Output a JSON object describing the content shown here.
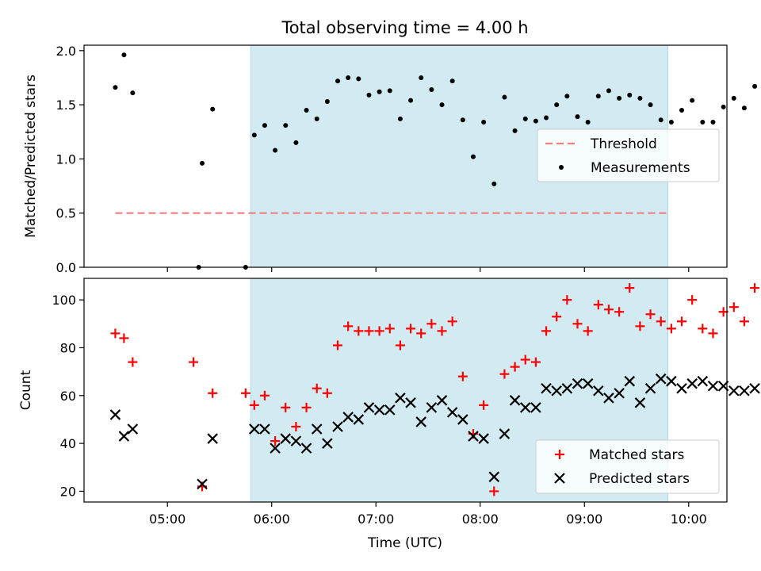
{
  "chart_data": {
    "type": "scatter",
    "title": "Total observing time = 4.00 h",
    "xlabel": "Time (UTC)",
    "x_unit": "hours UTC",
    "xlim": [
      "04:12",
      "10:22"
    ],
    "x_ticks": [
      {
        "value": "05:00",
        "label": "05:00"
      },
      {
        "value": "06:00",
        "label": "06:00"
      },
      {
        "value": "07:00",
        "label": "07:00"
      },
      {
        "value": "08:00",
        "label": "08:00"
      },
      {
        "value": "09:00",
        "label": "09:00"
      },
      {
        "value": "10:00",
        "label": "10:00"
      }
    ],
    "shaded_interval": {
      "from": "05:48",
      "to": "09:48",
      "color": "#add8e6"
    },
    "panels": [
      {
        "name": "ratio",
        "ylabel": "Matched/Predicted stars",
        "ylim": [
          0,
          2.05
        ],
        "y_ticks": [
          "0.0",
          "0.5",
          "1.0",
          "1.5",
          "2.0"
        ],
        "legend_position": "center-right",
        "threshold": {
          "name": "Threshold",
          "y": 0.5,
          "from": "04:30",
          "to": "09:48",
          "color": "#f08080"
        },
        "series": [
          {
            "name": "Measurements",
            "color": "#000000",
            "marker": "dot",
            "points": [
              [
                "04:30",
                1.66
              ],
              [
                "04:35",
                1.96
              ],
              [
                "04:40",
                1.61
              ],
              [
                "05:18",
                0.0
              ],
              [
                "05:20",
                0.96
              ],
              [
                "05:26",
                1.46
              ],
              [
                "05:45",
                0.0
              ],
              [
                "05:50",
                1.22
              ],
              [
                "05:56",
                1.31
              ],
              [
                "06:02",
                1.08
              ],
              [
                "06:08",
                1.31
              ],
              [
                "06:14",
                1.15
              ],
              [
                "06:20",
                1.45
              ],
              [
                "06:26",
                1.37
              ],
              [
                "06:32",
                1.53
              ],
              [
                "06:38",
                1.72
              ],
              [
                "06:44",
                1.75
              ],
              [
                "06:50",
                1.74
              ],
              [
                "06:56",
                1.59
              ],
              [
                "07:02",
                1.62
              ],
              [
                "07:08",
                1.63
              ],
              [
                "07:14",
                1.37
              ],
              [
                "07:20",
                1.54
              ],
              [
                "07:26",
                1.75
              ],
              [
                "07:32",
                1.64
              ],
              [
                "07:38",
                1.5
              ],
              [
                "07:44",
                1.72
              ],
              [
                "07:50",
                1.36
              ],
              [
                "07:56",
                1.02
              ],
              [
                "08:02",
                1.34
              ],
              [
                "08:08",
                0.77
              ],
              [
                "08:14",
                1.57
              ],
              [
                "08:20",
                1.26
              ],
              [
                "08:26",
                1.37
              ],
              [
                "08:32",
                1.35
              ],
              [
                "08:38",
                1.38
              ],
              [
                "08:44",
                1.5
              ],
              [
                "08:50",
                1.58
              ],
              [
                "08:56",
                1.39
              ],
              [
                "09:02",
                1.34
              ],
              [
                "09:08",
                1.58
              ],
              [
                "09:14",
                1.63
              ],
              [
                "09:20",
                1.56
              ],
              [
                "09:26",
                1.59
              ],
              [
                "09:32",
                1.56
              ],
              [
                "09:38",
                1.5
              ],
              [
                "09:44",
                1.36
              ],
              [
                "09:50",
                1.34
              ],
              [
                "09:56",
                1.45
              ],
              [
                "10:02",
                1.54
              ],
              [
                "10:08",
                1.34
              ],
              [
                "10:14",
                1.34
              ],
              [
                "10:20",
                1.48
              ],
              [
                "10:26",
                1.56
              ],
              [
                "10:32",
                1.47
              ],
              [
                "10:38",
                1.67
              ]
            ]
          }
        ]
      },
      {
        "name": "counts",
        "ylabel": "Count",
        "ylim": [
          15.5,
          109
        ],
        "y_ticks": [
          "20",
          "40",
          "60",
          "80",
          "100"
        ],
        "legend_position": "lower-right",
        "series": [
          {
            "name": "Matched stars",
            "color": "#ff0000",
            "marker": "plus",
            "points": [
              [
                "04:30",
                86
              ],
              [
                "04:35",
                84
              ],
              [
                "04:40",
                74
              ],
              [
                "05:15",
                74
              ],
              [
                "05:20",
                22
              ],
              [
                "05:26",
                61
              ],
              [
                "05:45",
                61
              ],
              [
                "05:50",
                56
              ],
              [
                "05:56",
                60
              ],
              [
                "06:02",
                41
              ],
              [
                "06:08",
                55
              ],
              [
                "06:14",
                47
              ],
              [
                "06:20",
                55
              ],
              [
                "06:26",
                63
              ],
              [
                "06:32",
                61
              ],
              [
                "06:38",
                81
              ],
              [
                "06:44",
                89
              ],
              [
                "06:50",
                87
              ],
              [
                "06:56",
                87
              ],
              [
                "07:02",
                87
              ],
              [
                "07:08",
                88
              ],
              [
                "07:14",
                81
              ],
              [
                "07:20",
                88
              ],
              [
                "07:26",
                86
              ],
              [
                "07:32",
                90
              ],
              [
                "07:38",
                87
              ],
              [
                "07:44",
                91
              ],
              [
                "07:50",
                68
              ],
              [
                "07:56",
                44
              ],
              [
                "08:02",
                56
              ],
              [
                "08:08",
                20
              ],
              [
                "08:14",
                69
              ],
              [
                "08:20",
                72
              ],
              [
                "08:26",
                75
              ],
              [
                "08:32",
                74
              ],
              [
                "08:38",
                87
              ],
              [
                "08:44",
                93
              ],
              [
                "08:50",
                100
              ],
              [
                "08:56",
                90
              ],
              [
                "09:02",
                87
              ],
              [
                "09:08",
                98
              ],
              [
                "09:14",
                96
              ],
              [
                "09:20",
                95
              ],
              [
                "09:26",
                105
              ],
              [
                "09:32",
                89
              ],
              [
                "09:38",
                94
              ],
              [
                "09:44",
                91
              ],
              [
                "09:50",
                88
              ],
              [
                "09:56",
                91
              ],
              [
                "10:02",
                100
              ],
              [
                "10:08",
                88
              ],
              [
                "10:14",
                86
              ],
              [
                "10:20",
                95
              ],
              [
                "10:26",
                97
              ],
              [
                "10:32",
                91
              ],
              [
                "10:38",
                105
              ]
            ]
          },
          {
            "name": "Predicted stars",
            "color": "#000000",
            "marker": "x",
            "points": [
              [
                "04:30",
                52
              ],
              [
                "04:35",
                43
              ],
              [
                "04:40",
                46
              ],
              [
                "05:20",
                23
              ],
              [
                "05:26",
                42
              ],
              [
                "05:50",
                46
              ],
              [
                "05:56",
                46
              ],
              [
                "06:02",
                38
              ],
              [
                "06:08",
                42
              ],
              [
                "06:14",
                41
              ],
              [
                "06:20",
                38
              ],
              [
                "06:26",
                46
              ],
              [
                "06:32",
                40
              ],
              [
                "06:38",
                47
              ],
              [
                "06:44",
                51
              ],
              [
                "06:50",
                50
              ],
              [
                "06:56",
                55
              ],
              [
                "07:02",
                54
              ],
              [
                "07:08",
                54
              ],
              [
                "07:14",
                59
              ],
              [
                "07:20",
                57
              ],
              [
                "07:26",
                49
              ],
              [
                "07:32",
                55
              ],
              [
                "07:38",
                58
              ],
              [
                "07:44",
                53
              ],
              [
                "07:50",
                50
              ],
              [
                "07:56",
                43
              ],
              [
                "08:02",
                42
              ],
              [
                "08:08",
                26
              ],
              [
                "08:14",
                44
              ],
              [
                "08:20",
                58
              ],
              [
                "08:26",
                55
              ],
              [
                "08:32",
                55
              ],
              [
                "08:38",
                63
              ],
              [
                "08:44",
                62
              ],
              [
                "08:50",
                63
              ],
              [
                "08:56",
                65
              ],
              [
                "09:02",
                65
              ],
              [
                "09:08",
                62
              ],
              [
                "09:14",
                59
              ],
              [
                "09:20",
                61
              ],
              [
                "09:26",
                66
              ],
              [
                "09:32",
                57
              ],
              [
                "09:38",
                63
              ],
              [
                "09:44",
                67
              ],
              [
                "09:50",
                66
              ],
              [
                "09:56",
                63
              ],
              [
                "10:02",
                65
              ],
              [
                "10:08",
                66
              ],
              [
                "10:14",
                64
              ],
              [
                "10:20",
                64
              ],
              [
                "10:26",
                62
              ],
              [
                "10:32",
                62
              ],
              [
                "10:38",
                63
              ]
            ]
          }
        ]
      }
    ]
  }
}
